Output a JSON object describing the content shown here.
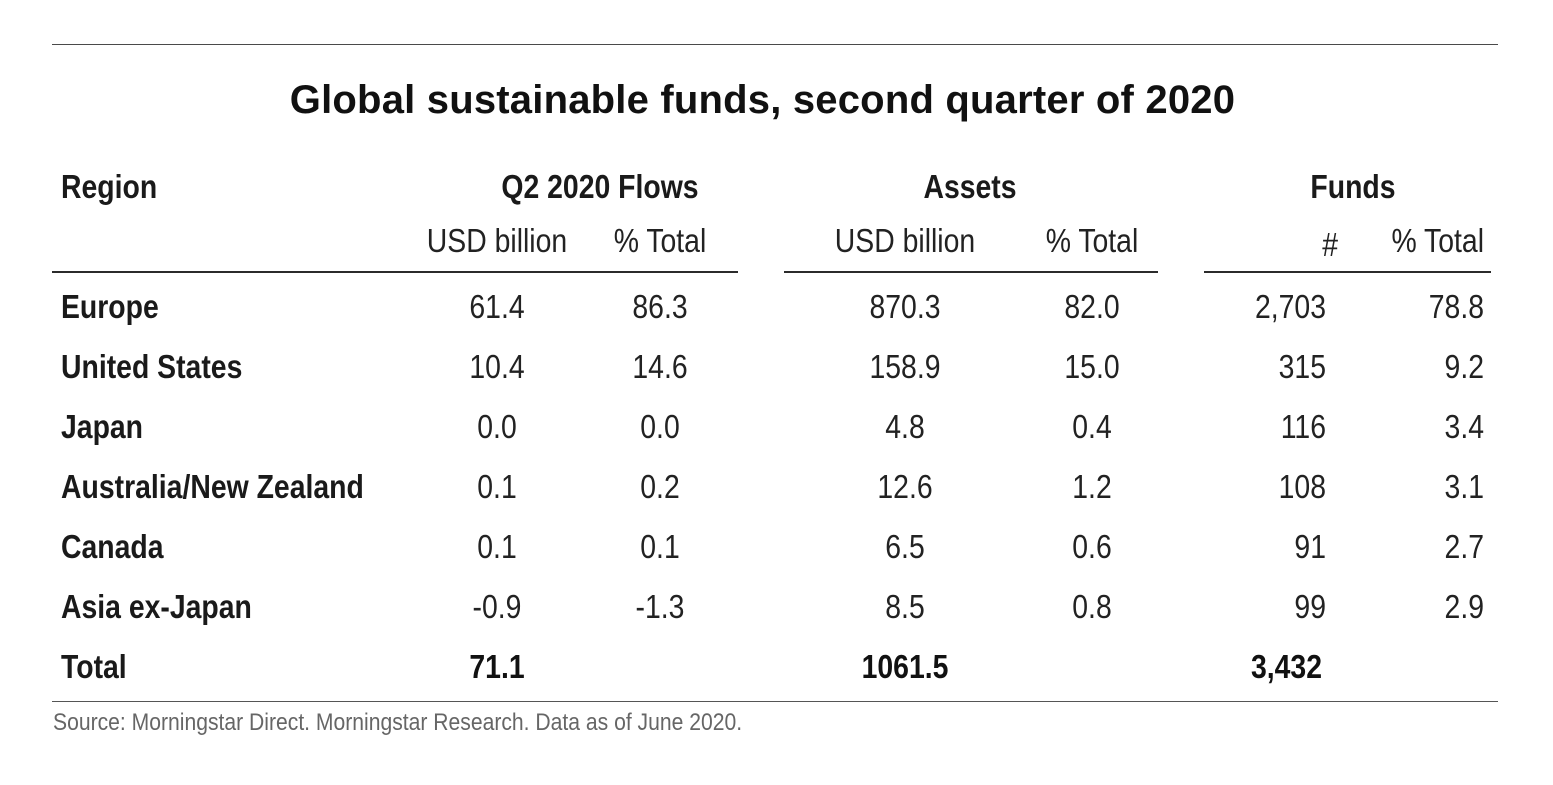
{
  "chart_data": {
    "type": "table",
    "title": "Global sustainable funds, second quarter of  2020",
    "header": {
      "region": "Region",
      "groups": [
        "Q2 2020 Flows",
        "Assets",
        "Funds"
      ],
      "subcolumns": [
        "USD billion",
        "% Total",
        "USD billion",
        "% Total",
        "#",
        "% Total"
      ]
    },
    "rows": [
      {
        "region": "Europe",
        "values": [
          "61.4",
          "86.3",
          "870.3",
          "82.0",
          "2,703",
          "78.8"
        ]
      },
      {
        "region": "United States",
        "values": [
          "10.4",
          "14.6",
          "158.9",
          "15.0",
          "315",
          "9.2"
        ]
      },
      {
        "region": "Japan",
        "values": [
          "0.0",
          "0.0",
          "4.8",
          "0.4",
          "116",
          "3.4"
        ]
      },
      {
        "region": "Australia/New Zealand",
        "values": [
          "0.1",
          "0.2",
          "12.6",
          "1.2",
          "108",
          "3.1"
        ]
      },
      {
        "region": "Canada",
        "values": [
          "0.1",
          "0.1",
          "6.5",
          "0.6",
          "91",
          "2.7"
        ]
      },
      {
        "region": "Asia ex-Japan",
        "values": [
          "-0.9",
          "-1.3",
          "8.5",
          "0.8",
          "99",
          "2.9"
        ]
      }
    ],
    "total": {
      "region": "Total",
      "values": [
        "71.1",
        "",
        "1061.5",
        "",
        "3,432",
        ""
      ]
    },
    "source": "Source: Morningstar Direct. Morningstar Research. Data as of June 2020."
  }
}
